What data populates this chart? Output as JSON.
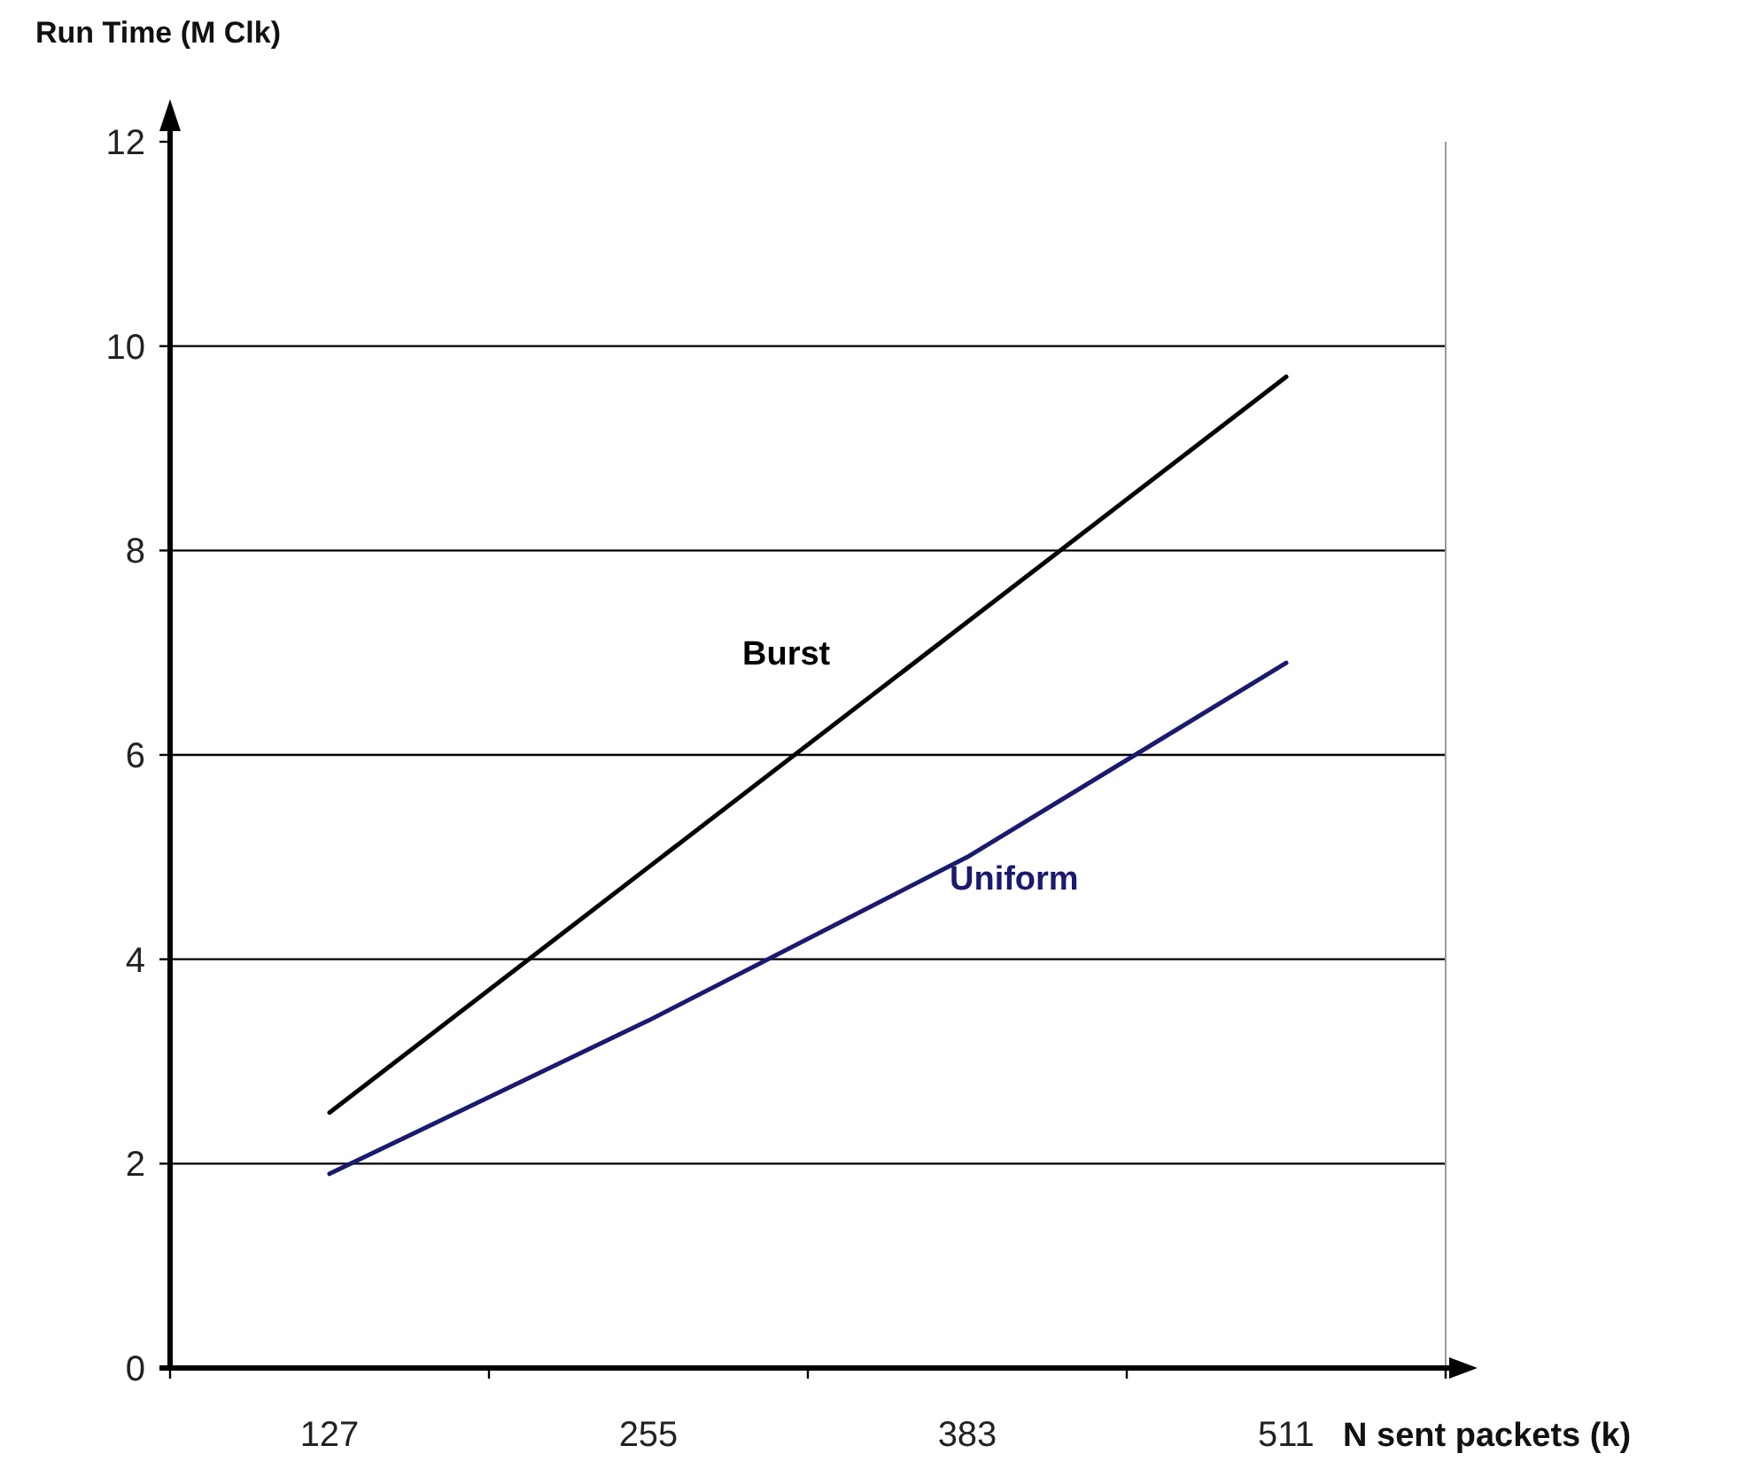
{
  "chart_data": {
    "type": "line",
    "ylabel": "Run Time (M Clk)",
    "xlabel": "N sent packets (k)",
    "categories": [
      "127",
      "255",
      "383",
      "511"
    ],
    "series": [
      {
        "name": "Burst",
        "color": "#000000",
        "values": [
          2.5,
          4.9,
          7.3,
          9.7
        ]
      },
      {
        "name": "Uniform",
        "color": "#1a1a6e",
        "values": [
          1.9,
          3.4,
          5.0,
          6.9
        ]
      }
    ],
    "ylim": [
      0,
      12
    ],
    "yticks": [
      0,
      2,
      4,
      6,
      8,
      10,
      12
    ],
    "grid": "y",
    "marker": "none",
    "line_style": "solid"
  }
}
